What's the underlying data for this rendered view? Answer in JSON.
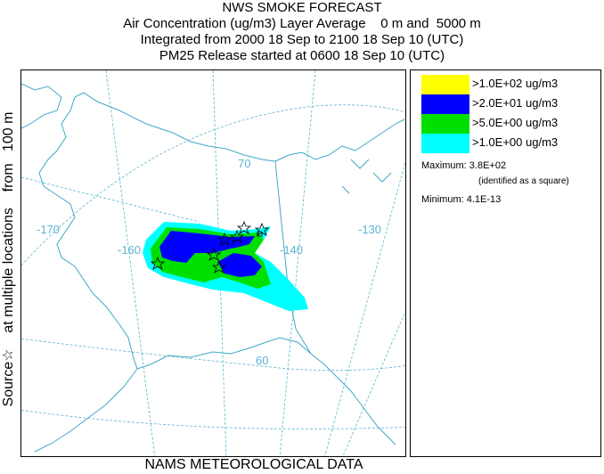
{
  "header": {
    "title": "NWS SMOKE FORECAST",
    "line2": "Air Concentration (ug/m3) Layer Average    0 m and  5000 m",
    "line3": "Integrated from 2000 18 Sep to 2100 18 Sep 10 (UTC)",
    "line4": "PM25 Release started at 0600 18 Sep 10 (UTC)"
  },
  "side_label": "Source☆    at multiple locations    from   100 m",
  "footer": "NAMS METEOROLOGICAL DATA",
  "map": {
    "longitude_labels": [
      "-170",
      "-160",
      "-140",
      "-130"
    ],
    "latitude_labels": [
      "70",
      "60"
    ],
    "colors": {
      "coast": "#3fa9c6",
      "graticule": "#5cb4d2",
      "border": "#3fa9c6"
    }
  },
  "legend": {
    "levels": [
      {
        "label": ">1.0E+02 ug/m3",
        "color": "#ffff00"
      },
      {
        "label": ">2.0E+01 ug/m3",
        "color": "#0000ff"
      },
      {
        "label": ">5.0E+00 ug/m3",
        "color": "#00e000"
      },
      {
        "label": ">1.0E+00 ug/m3",
        "color": "#00ffff"
      }
    ],
    "maximum_label": "Maximum:",
    "maximum_value": "3.8E+02",
    "maximum_note": "(identified as a square)",
    "minimum_label": "Minimum:",
    "minimum_value": "4.1E-13"
  }
}
